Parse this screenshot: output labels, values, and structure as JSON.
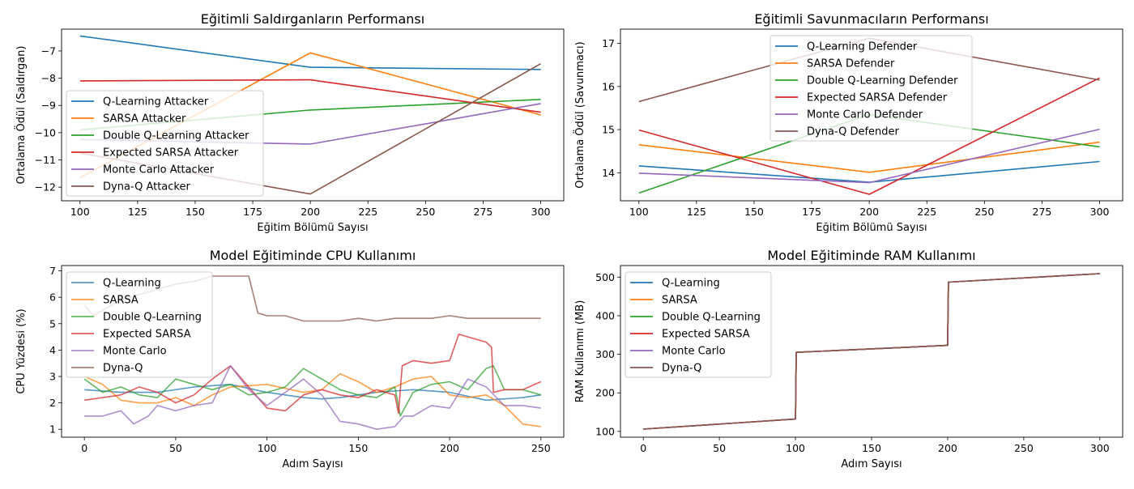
{
  "colors": {
    "blue": "#1f77b4",
    "orange": "#ff7f0e",
    "green": "#2ca02c",
    "red": "#d62728",
    "purple": "#9467bd",
    "brown": "#8c564b"
  },
  "chart_data": [
    {
      "type": "line",
      "title": "Eğitimli Saldırganların Performansı",
      "xlabel": "Eğitim Bölümü Sayısı",
      "ylabel": "Ortalama Ödül (Saldırgan)",
      "xlim": [
        92,
        310
      ],
      "ylim": [
        -12.5,
        -6.2
      ],
      "xticks": [
        100,
        125,
        150,
        175,
        200,
        225,
        250,
        275,
        300
      ],
      "yticks": [
        -12,
        -11,
        -10,
        -9,
        -8,
        -7
      ],
      "x": [
        100,
        200,
        300
      ],
      "legend": "upper-left-center",
      "series": [
        {
          "name": "Q-Learning Attacker",
          "color": "blue",
          "values": [
            -6.45,
            -7.6,
            -7.68
          ]
        },
        {
          "name": "SARSA Attacker",
          "color": "orange",
          "values": [
            -11.65,
            -7.07,
            -9.35
          ]
        },
        {
          "name": "Double Q-Learning Attacker",
          "color": "green",
          "values": [
            -9.9,
            -9.17,
            -8.78
          ]
        },
        {
          "name": "Expected SARSA Attacker",
          "color": "red",
          "values": [
            -8.1,
            -8.06,
            -9.25
          ]
        },
        {
          "name": "Monte Carlo Attacker",
          "color": "purple",
          "values": [
            -10.25,
            -10.42,
            -8.93
          ]
        },
        {
          "name": "Dyna-Q Attacker",
          "color": "brown",
          "values": [
            -10.75,
            -12.25,
            -7.47
          ]
        }
      ]
    },
    {
      "type": "line",
      "title": "Eğitimli Savunmacıların Performansı",
      "xlabel": "Eğitim Bölümü Sayısı",
      "ylabel": "Ortalama Ödül (Savunmacı)",
      "xlim": [
        92,
        310
      ],
      "ylim": [
        13.35,
        17.33
      ],
      "xticks": [
        100,
        125,
        150,
        175,
        200,
        225,
        250,
        275,
        300
      ],
      "yticks": [
        14,
        15,
        16,
        17
      ],
      "x": [
        100,
        200,
        300
      ],
      "legend": "upper-center",
      "series": [
        {
          "name": "Q-Learning Defender",
          "color": "blue",
          "values": [
            14.16,
            13.78,
            14.26
          ]
        },
        {
          "name": "SARSA Defender",
          "color": "orange",
          "values": [
            14.65,
            14.01,
            14.71
          ]
        },
        {
          "name": "Double Q-Learning Defender",
          "color": "green",
          "values": [
            13.53,
            15.35,
            14.6
          ]
        },
        {
          "name": "Expected SARSA Defender",
          "color": "red",
          "values": [
            14.99,
            13.5,
            16.2
          ]
        },
        {
          "name": "Monte Carlo Defender",
          "color": "purple",
          "values": [
            13.99,
            13.77,
            15.01
          ]
        },
        {
          "name": "Dyna-Q Defender",
          "color": "brown",
          "values": [
            15.65,
            17.12,
            16.15
          ]
        }
      ]
    },
    {
      "type": "line",
      "title": "Model Eğitiminde CPU Kullanımı",
      "xlabel": "Adım Sayısı",
      "ylabel": "CPU Yüzdesi (%)",
      "xlim": [
        -12.5,
        262.5
      ],
      "ylim": [
        0.7,
        7.2
      ],
      "xticks": [
        0,
        50,
        100,
        150,
        200,
        250
      ],
      "yticks": [
        1,
        2,
        3,
        4,
        5,
        6,
        7
      ],
      "legend": "upper-left",
      "series_alpha": 0.75,
      "series": [
        {
          "name": "Q-Learning",
          "color": "blue",
          "x": [
            0,
            20,
            40,
            60,
            80,
            100,
            120,
            130,
            140,
            150,
            160,
            180,
            200,
            220,
            240,
            250
          ],
          "values": [
            2.5,
            2.4,
            2.4,
            2.6,
            2.7,
            2.4,
            2.2,
            2.15,
            2.2,
            2.3,
            2.4,
            2.5,
            2.4,
            2.1,
            2.2,
            2.3
          ]
        },
        {
          "name": "SARSA",
          "color": "orange",
          "x": [
            0,
            10,
            20,
            30,
            40,
            50,
            60,
            70,
            80,
            100,
            120,
            130,
            140,
            150,
            160,
            170,
            180,
            190,
            200,
            210,
            220,
            230,
            240,
            250
          ],
          "values": [
            3.0,
            2.7,
            2.1,
            2.0,
            2.0,
            2.2,
            1.9,
            2.3,
            2.6,
            2.7,
            2.4,
            2.5,
            3.1,
            2.8,
            2.4,
            2.6,
            2.9,
            3.0,
            2.3,
            2.2,
            2.3,
            1.9,
            1.2,
            1.1
          ]
        },
        {
          "name": "Double Q-Learning",
          "color": "green",
          "x": [
            0,
            10,
            20,
            30,
            40,
            50,
            60,
            70,
            80,
            90,
            100,
            110,
            120,
            130,
            140,
            150,
            160,
            170,
            173,
            180,
            190,
            200,
            210,
            220,
            224,
            230,
            240,
            250
          ],
          "values": [
            2.9,
            2.4,
            2.6,
            2.3,
            2.2,
            2.9,
            2.7,
            2.5,
            2.7,
            2.3,
            2.4,
            2.6,
            3.3,
            2.9,
            2.5,
            2.3,
            2.2,
            2.6,
            1.5,
            2.4,
            2.7,
            2.8,
            2.5,
            3.3,
            3.4,
            2.5,
            2.5,
            2.3
          ]
        },
        {
          "name": "Expected SARSA",
          "color": "red",
          "x": [
            0,
            10,
            20,
            30,
            40,
            50,
            60,
            70,
            80,
            90,
            100,
            110,
            120,
            130,
            140,
            150,
            160,
            170,
            172,
            174,
            180,
            190,
            200,
            205,
            210,
            220,
            223,
            224,
            230,
            240,
            250
          ],
          "values": [
            2.1,
            2.2,
            2.3,
            2.6,
            2.4,
            2.0,
            2.3,
            2.9,
            3.4,
            2.6,
            1.8,
            1.7,
            2.3,
            2.5,
            2.3,
            2.2,
            2.5,
            2.3,
            1.6,
            3.4,
            3.6,
            3.5,
            3.6,
            4.6,
            4.5,
            4.3,
            4.1,
            2.4,
            2.5,
            2.5,
            2.8
          ]
        },
        {
          "name": "Monte Carlo",
          "color": "purple",
          "x": [
            0,
            10,
            20,
            27,
            35,
            40,
            50,
            60,
            70,
            80,
            90,
            100,
            110,
            120,
            130,
            140,
            150,
            160,
            170,
            175,
            180,
            190,
            200,
            210,
            220,
            230,
            240,
            250
          ],
          "values": [
            1.5,
            1.5,
            1.7,
            1.2,
            1.5,
            1.9,
            1.7,
            1.9,
            2.0,
            3.4,
            2.5,
            1.9,
            2.4,
            2.9,
            2.3,
            1.3,
            1.2,
            1.0,
            1.1,
            1.5,
            1.5,
            1.9,
            1.8,
            2.9,
            2.6,
            1.9,
            1.9,
            1.8
          ]
        },
        {
          "name": "Dyna-Q",
          "color": "brown",
          "x": [
            0,
            5,
            10,
            20,
            30,
            40,
            50,
            60,
            70,
            80,
            90,
            95,
            100,
            110,
            120,
            130,
            140,
            150,
            160,
            170,
            180,
            190,
            200,
            210,
            220,
            230,
            240,
            250
          ],
          "values": [
            5.7,
            5.3,
            5.5,
            5.9,
            6.1,
            6.3,
            6.5,
            6.6,
            6.8,
            6.8,
            6.8,
            5.4,
            5.3,
            5.3,
            5.1,
            5.1,
            5.1,
            5.2,
            5.1,
            5.2,
            5.2,
            5.2,
            5.3,
            5.2,
            5.2,
            5.2,
            5.2,
            5.2
          ]
        }
      ]
    },
    {
      "type": "line",
      "title": "Model Eğitiminde RAM Kullanımı",
      "xlabel": "Adım Sayısı",
      "ylabel": "RAM Kullanımı (MB)",
      "xlim": [
        -15,
        315
      ],
      "ylim": [
        85,
        530
      ],
      "xticks": [
        0,
        50,
        100,
        150,
        200,
        250,
        300
      ],
      "yticks": [
        100,
        200,
        300,
        400,
        500
      ],
      "legend": "upper-left",
      "x": [
        0,
        100,
        100.5,
        200,
        200.5,
        300
      ],
      "series": [
        {
          "name": "Q-Learning",
          "color": "blue",
          "values": [
            106,
            132,
            305,
            323,
            487,
            509
          ]
        },
        {
          "name": "SARSA",
          "color": "orange",
          "values": [
            106,
            132,
            305,
            323,
            487,
            509
          ]
        },
        {
          "name": "Double Q-Learning",
          "color": "green",
          "values": [
            106,
            132,
            305,
            323,
            487,
            509
          ]
        },
        {
          "name": "Expected SARSA",
          "color": "red",
          "values": [
            106,
            132,
            305,
            323,
            487,
            509
          ]
        },
        {
          "name": "Monte Carlo",
          "color": "purple",
          "values": [
            106,
            132,
            305,
            323,
            487,
            509
          ]
        },
        {
          "name": "Dyna-Q",
          "color": "brown",
          "values": [
            106,
            132,
            305,
            323,
            487,
            509
          ]
        }
      ]
    }
  ]
}
